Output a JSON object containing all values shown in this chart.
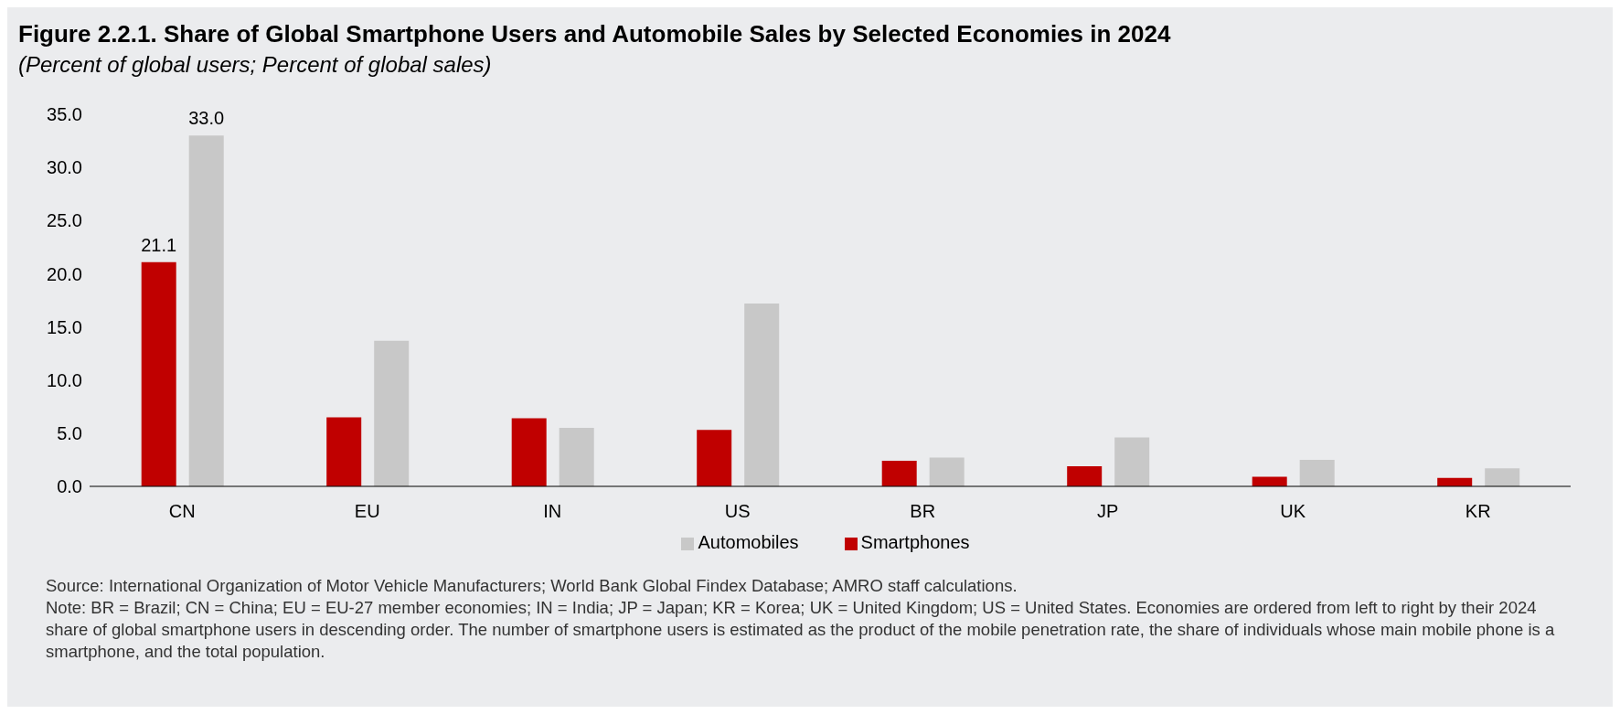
{
  "chart_data": {
    "type": "bar",
    "title": "Figure 2.2.1. Share of Global Smartphone Users and Automobile Sales by Selected Economies in 2024",
    "subtitle": "(Percent of global users; Percent of global sales)",
    "categories": [
      "CN",
      "EU",
      "IN",
      "US",
      "BR",
      "JP",
      "UK",
      "KR"
    ],
    "series": [
      {
        "name": "Smartphones",
        "color": "#c00000",
        "values": [
          21.1,
          6.5,
          6.4,
          5.3,
          2.4,
          1.9,
          0.9,
          0.8
        ],
        "value_labels": [
          "21.1",
          null,
          null,
          null,
          null,
          null,
          null,
          null
        ]
      },
      {
        "name": "Automobiles",
        "color": "#c8c8c8",
        "values": [
          33.0,
          13.7,
          5.5,
          17.2,
          2.7,
          4.6,
          2.5,
          1.7
        ],
        "value_labels": [
          "33.0",
          null,
          null,
          null,
          null,
          null,
          null,
          null
        ]
      }
    ],
    "ylim": [
      0,
      35
    ],
    "yticks": [
      {
        "value": 0,
        "label": "0.0"
      },
      {
        "value": 5,
        "label": "5.0"
      },
      {
        "value": 10,
        "label": "10.0"
      },
      {
        "value": 15,
        "label": "15.0"
      },
      {
        "value": 20,
        "label": "20.0"
      },
      {
        "value": 25,
        "label": "25.0"
      },
      {
        "value": 30,
        "label": "30.0"
      },
      {
        "value": 35,
        "label": "35.0"
      }
    ],
    "grid": false,
    "legend": "bottom",
    "annotations": [
      "Source: International Organization of Motor Vehicle Manufacturers; World Bank Global Findex Database; AMRO staff calculations.",
      "Note: BR = Brazil; CN = China; EU = EU-27 member economies; IN = India; JP = Japan; KR = Korea; UK = United Kingdom; US = United States. Economies are ordered from left to right by their 2024 share of global smartphone users in descending order. The number of smartphone users is estimated as the product of the mobile penetration rate, the share of individuals whose main mobile phone is a smartphone, and the total population."
    ]
  }
}
